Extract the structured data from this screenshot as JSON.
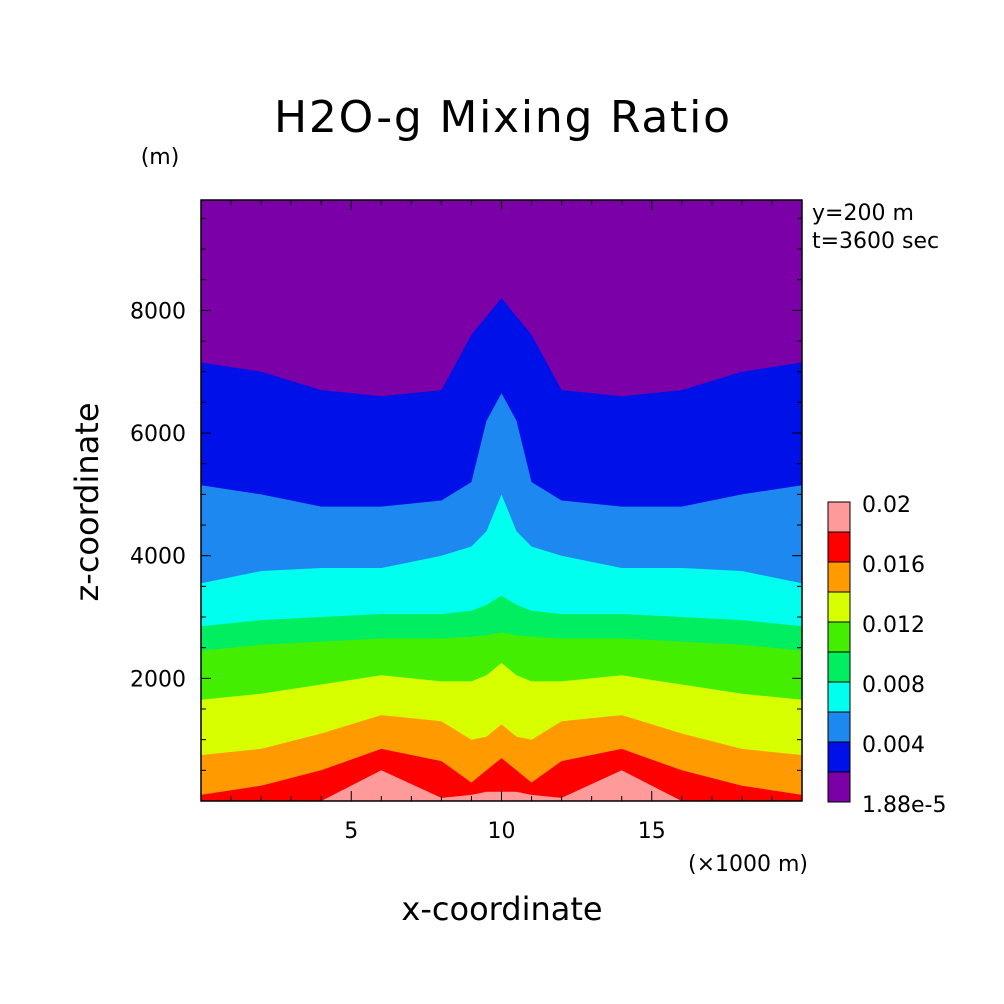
{
  "chart_data": {
    "type": "heatmap",
    "title": "H2O-g Mixing Ratio",
    "xlabel": "x-coordinate",
    "ylabel": "z-coordinate",
    "x_unit": "(×1000 m)",
    "y_unit": "(m)",
    "annotations": [
      "y=200 m",
      "t=3600 sec"
    ],
    "xlim": [
      0,
      20
    ],
    "ylim": [
      0,
      9800
    ],
    "x_ticks": [
      5,
      10,
      15
    ],
    "y_ticks": [
      2000,
      4000,
      6000,
      8000
    ],
    "colorbar": {
      "labels": [
        "0.02",
        "0.016",
        "0.012",
        "0.008",
        "0.004",
        "1.88e-5"
      ],
      "levels": [
        1.88e-05,
        0.002,
        0.004,
        0.006,
        0.008,
        0.01,
        0.012,
        0.014,
        0.016,
        0.018,
        0.02
      ],
      "colors": [
        "#7b00a8",
        "#0010e8",
        "#1c88f0",
        "#00ffee",
        "#00ee60",
        "#44ee00",
        "#d8ff00",
        "#ff9a00",
        "#ff0000",
        "#ff9a9a"
      ]
    },
    "contour_boundaries_z_m": {
      "x": [
        0,
        2,
        4,
        6,
        8,
        9,
        9.5,
        10,
        10.5,
        11,
        12,
        14,
        16,
        18,
        20
      ],
      "levels": [
        {
          "level": 0.002,
          "z": [
            7150,
            7000,
            6700,
            6600,
            6700,
            7600,
            7900,
            8200,
            7900,
            7600,
            6700,
            6600,
            6700,
            7000,
            7150
          ]
        },
        {
          "level": 0.004,
          "z": [
            5150,
            5000,
            4800,
            4800,
            4900,
            5200,
            6200,
            6650,
            6200,
            5200,
            4900,
            4800,
            4800,
            5000,
            5150
          ]
        },
        {
          "level": 0.006,
          "z": [
            3550,
            3750,
            3800,
            3800,
            4000,
            4150,
            4400,
            5000,
            4400,
            4150,
            4000,
            3800,
            3800,
            3750,
            3550
          ]
        },
        {
          "level": 0.008,
          "z": [
            2850,
            2950,
            3000,
            3050,
            3050,
            3100,
            3200,
            3350,
            3200,
            3100,
            3050,
            3050,
            3000,
            2950,
            2850
          ]
        },
        {
          "level": 0.01,
          "z": [
            2450,
            2550,
            2600,
            2650,
            2650,
            2680,
            2700,
            2750,
            2700,
            2680,
            2650,
            2650,
            2600,
            2550,
            2450
          ]
        },
        {
          "level": 0.012,
          "z": [
            1650,
            1750,
            1900,
            2050,
            1950,
            1950,
            2050,
            2250,
            2050,
            1950,
            1950,
            2050,
            1900,
            1750,
            1650
          ]
        },
        {
          "level": 0.014,
          "z": [
            750,
            850,
            1100,
            1400,
            1300,
            1000,
            1050,
            1250,
            1050,
            1000,
            1300,
            1400,
            1100,
            850,
            750
          ]
        },
        {
          "level": 0.016,
          "z": [
            100,
            250,
            500,
            850,
            650,
            300,
            500,
            700,
            500,
            300,
            650,
            850,
            500,
            250,
            100
          ]
        },
        {
          "level": 0.018,
          "z": [
            0,
            0,
            0,
            500,
            50,
            100,
            150,
            150,
            150,
            100,
            50,
            500,
            0,
            0,
            0
          ]
        }
      ]
    },
    "grid": false,
    "legend": "colorbar-right"
  }
}
